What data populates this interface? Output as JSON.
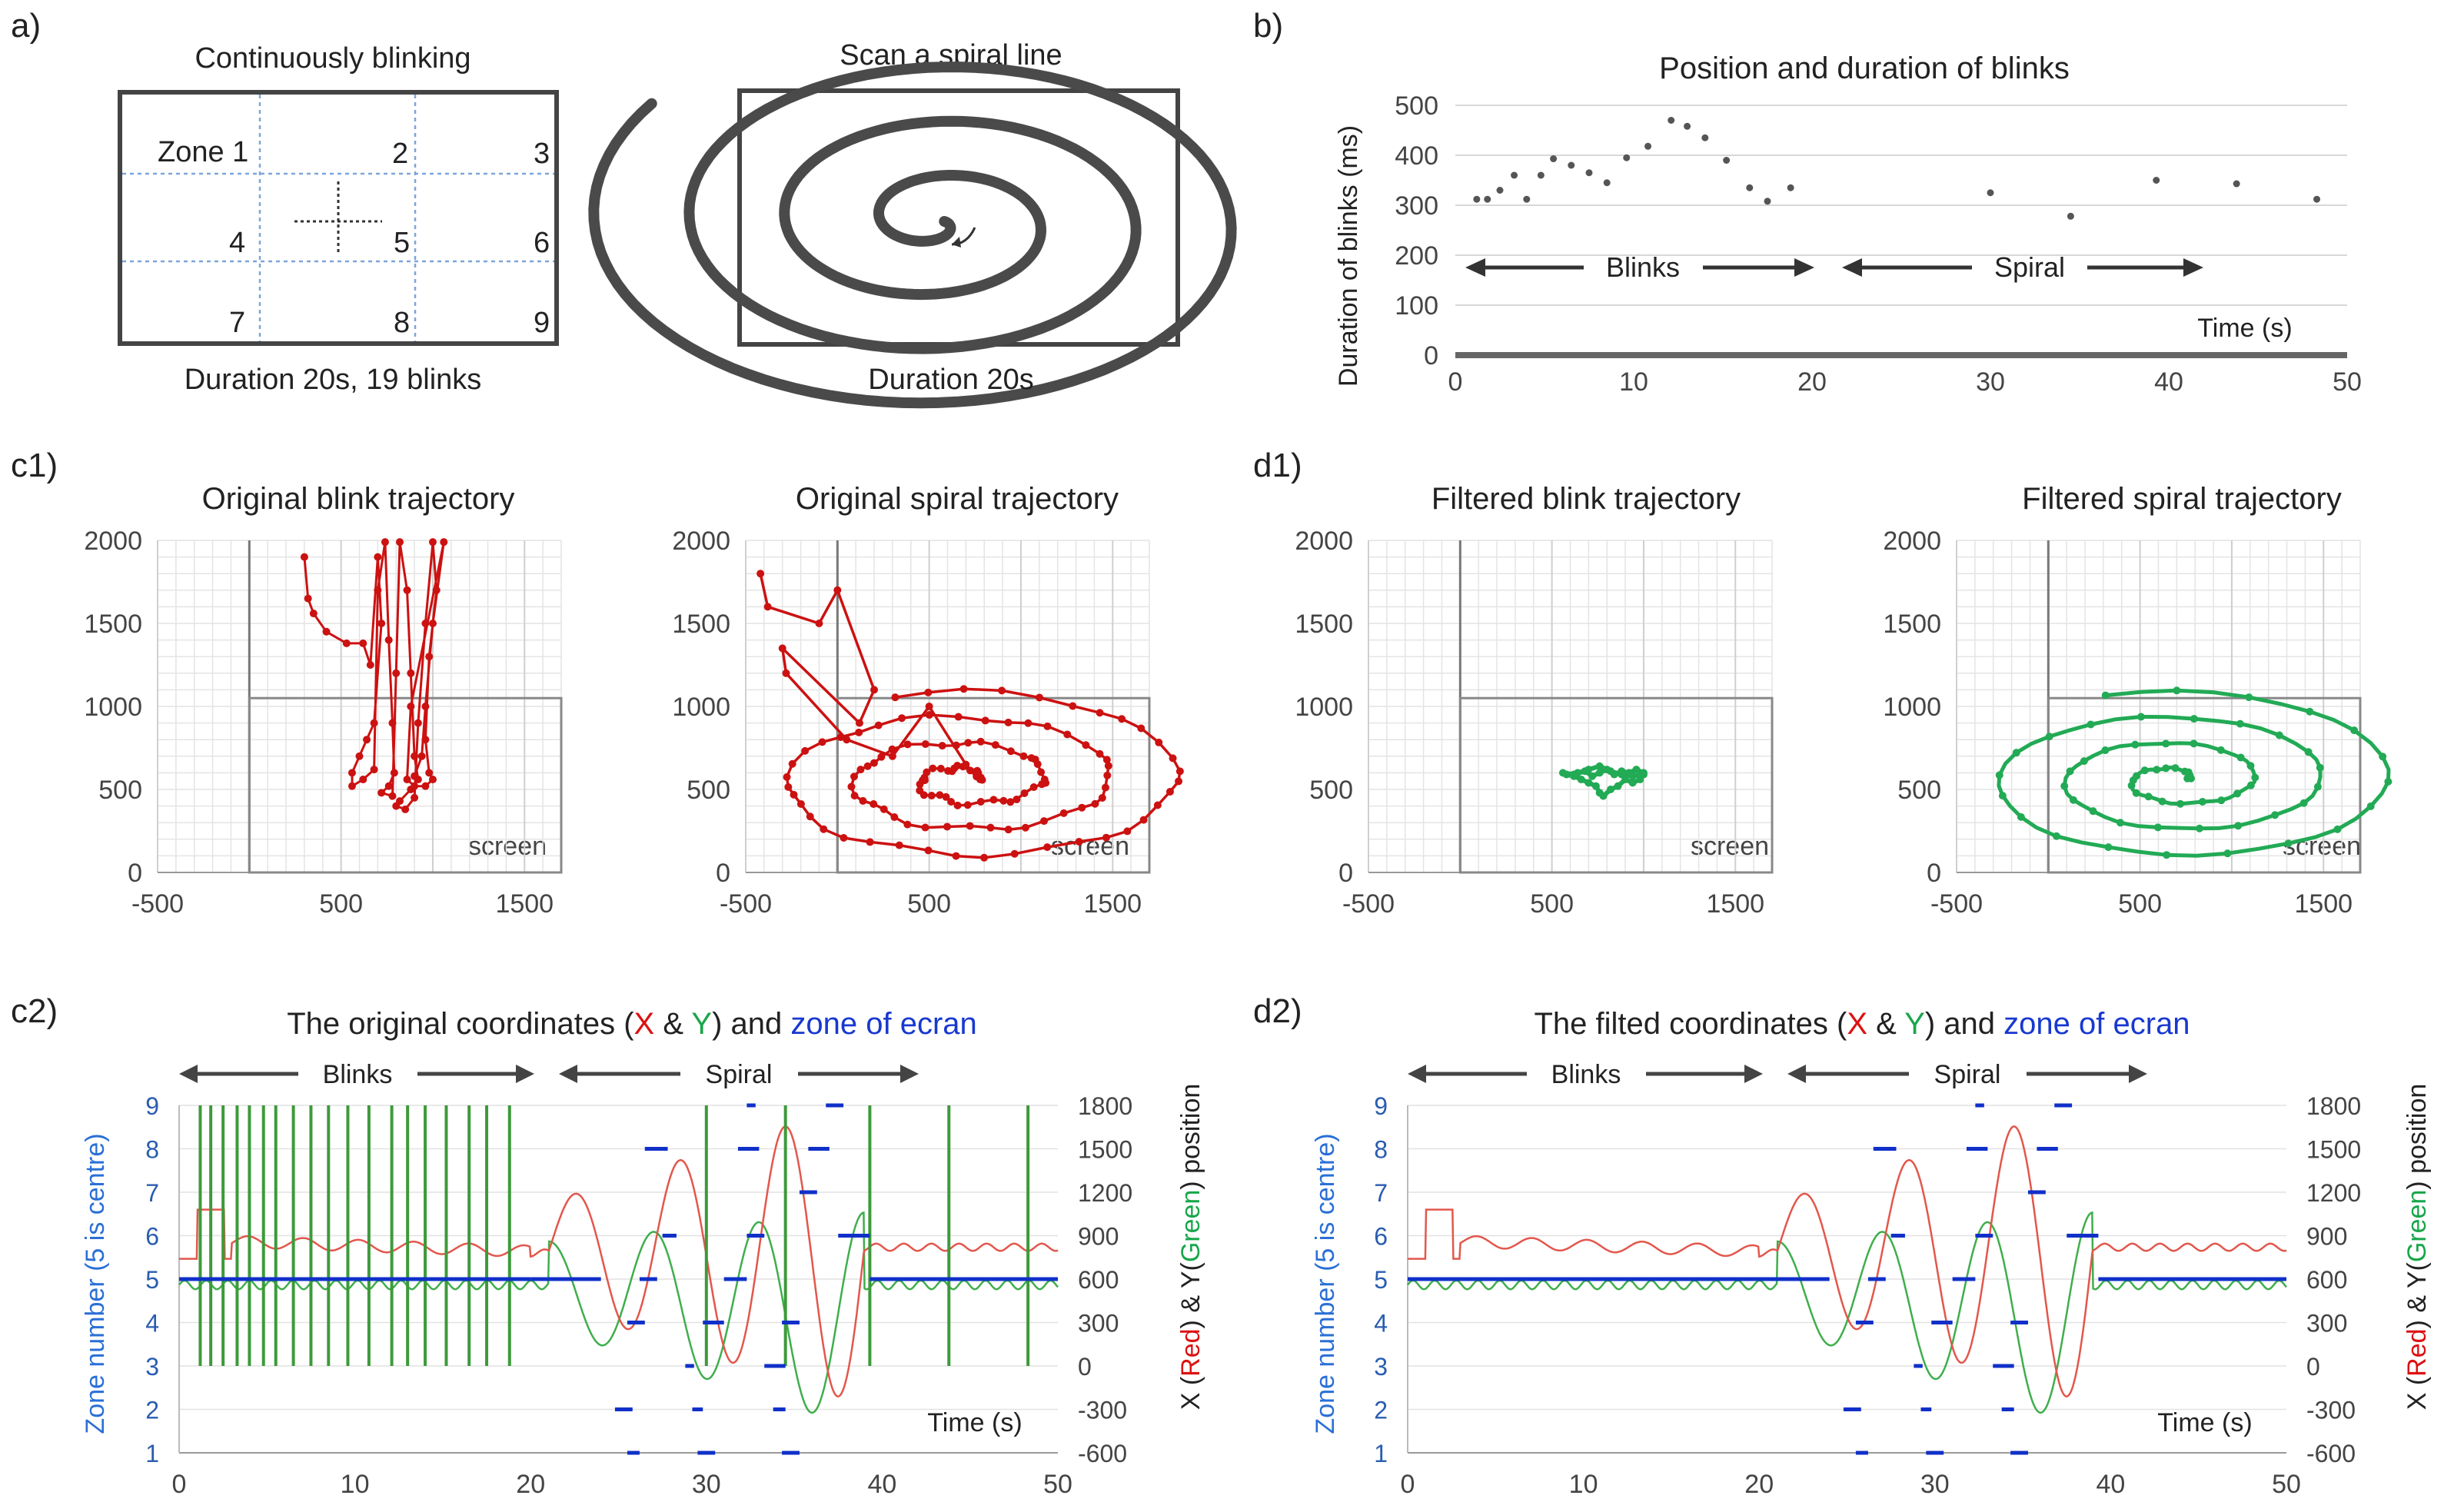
{
  "panels": {
    "a": "a)",
    "b": "b)",
    "c1": "c1)",
    "d1": "d1)",
    "c2": "c2)",
    "d2": "d2)"
  },
  "panel_a": {
    "left_title": "Continuously blinking",
    "left_caption": "Duration 20s, 19 blinks",
    "zones": [
      "Zone 1",
      "2",
      "3",
      "4",
      "5",
      "6",
      "7",
      "8",
      "9"
    ],
    "right_title": "Scan a spiral line",
    "right_caption": "Duration 20s"
  },
  "colors": {
    "red": "#cc1111",
    "green": "#22aa55",
    "blue": "#1030c8",
    "zone_axis": "#2a6fd6",
    "gray_line": "#555555"
  },
  "chart_data": [
    {
      "id": "b",
      "type": "scatter",
      "title": "Position and duration of  blinks",
      "xlabel": "Time (s)",
      "ylabel": "Duration of blinks (ms)",
      "xlim": [
        0,
        50
      ],
      "ylim": [
        0,
        500
      ],
      "xticks": [
        0,
        10,
        20,
        30,
        40,
        50
      ],
      "yticks": [
        0,
        100,
        200,
        300,
        400,
        500
      ],
      "annotations": [
        "Blinks",
        "Spiral"
      ],
      "points": [
        [
          1.2,
          312
        ],
        [
          1.8,
          312
        ],
        [
          2.5,
          330
        ],
        [
          3.3,
          360
        ],
        [
          4.0,
          312
        ],
        [
          4.8,
          360
        ],
        [
          5.5,
          393
        ],
        [
          6.5,
          380
        ],
        [
          7.5,
          365
        ],
        [
          8.5,
          345
        ],
        [
          9.6,
          395
        ],
        [
          10.8,
          418
        ],
        [
          12.1,
          470
        ],
        [
          13.0,
          458
        ],
        [
          14.0,
          435
        ],
        [
          15.2,
          390
        ],
        [
          16.5,
          335
        ],
        [
          17.5,
          308
        ],
        [
          18.8,
          335
        ],
        [
          30.0,
          325
        ],
        [
          34.5,
          278
        ],
        [
          39.3,
          350
        ],
        [
          43.8,
          343
        ],
        [
          48.3,
          312
        ]
      ]
    },
    {
      "id": "c1-left",
      "type": "line",
      "title": "Original blink trajectory",
      "xlim": [
        -500,
        1700
      ],
      "ylim": [
        0,
        2000
      ],
      "xticks": [
        -500,
        500,
        1500
      ],
      "yticks": [
        0,
        500,
        1000,
        1500,
        2000
      ],
      "screen_label": "screen",
      "screen_box": {
        "x0": 0,
        "x1": 1700,
        "y0": 0,
        "y1": 1050
      },
      "color": "#cc1111",
      "points": [
        [
          300,
          1900
        ],
        [
          320,
          1650
        ],
        [
          350,
          1560
        ],
        [
          420,
          1450
        ],
        [
          530,
          1380
        ],
        [
          620,
          1380
        ],
        [
          660,
          1250
        ],
        [
          700,
          1900
        ],
        [
          720,
          1500
        ],
        [
          680,
          900
        ],
        [
          640,
          800
        ],
        [
          600,
          700
        ],
        [
          560,
          600
        ],
        [
          560,
          520
        ],
        [
          620,
          560
        ],
        [
          680,
          620
        ],
        [
          700,
          1700
        ],
        [
          740,
          1990
        ],
        [
          760,
          1400
        ],
        [
          780,
          900
        ],
        [
          790,
          600
        ],
        [
          760,
          520
        ],
        [
          720,
          480
        ],
        [
          780,
          460
        ],
        [
          800,
          1200
        ],
        [
          820,
          1990
        ],
        [
          860,
          1700
        ],
        [
          880,
          1200
        ],
        [
          900,
          700
        ],
        [
          920,
          560
        ],
        [
          880,
          500
        ],
        [
          820,
          430
        ],
        [
          800,
          400
        ],
        [
          850,
          380
        ],
        [
          900,
          450
        ],
        [
          920,
          900
        ],
        [
          960,
          1500
        ],
        [
          1000,
          1990
        ],
        [
          1020,
          1700
        ],
        [
          980,
          1300
        ],
        [
          960,
          800
        ],
        [
          980,
          600
        ],
        [
          1000,
          560
        ],
        [
          960,
          520
        ],
        [
          900,
          520
        ],
        [
          860,
          560
        ],
        [
          880,
          1000
        ],
        [
          1060,
          1990
        ],
        [
          1000,
          1500
        ],
        [
          960,
          1000
        ],
        [
          940,
          700
        ],
        [
          900,
          580
        ]
      ]
    },
    {
      "id": "c1-right",
      "type": "line",
      "title": "Original spiral trajectory",
      "xlim": [
        -500,
        1700
      ],
      "ylim": [
        0,
        2000
      ],
      "xticks": [
        -500,
        500,
        1500
      ],
      "yticks": [
        0,
        500,
        1000,
        1500,
        2000
      ],
      "screen_label": "screen",
      "screen_box": {
        "x0": 0,
        "x1": 1700,
        "y0": 0,
        "y1": 1050
      },
      "color": "#cc1111"
    },
    {
      "id": "d1-left",
      "type": "line",
      "title": "Filtered blink trajectory",
      "xlim": [
        -500,
        1700
      ],
      "ylim": [
        0,
        2000
      ],
      "xticks": [
        -500,
        500,
        1500
      ],
      "yticks": [
        0,
        500,
        1000,
        1500,
        2000
      ],
      "screen_label": "screen",
      "screen_box": {
        "x0": 0,
        "x1": 1700,
        "y0": 0,
        "y1": 1050
      },
      "color": "#22aa55",
      "points": [
        [
          560,
          600
        ],
        [
          620,
          590
        ],
        [
          680,
          610
        ],
        [
          720,
          580
        ],
        [
          760,
          600
        ],
        [
          800,
          620
        ],
        [
          840,
          590
        ],
        [
          880,
          610
        ],
        [
          920,
          600
        ],
        [
          960,
          620
        ],
        [
          1000,
          600
        ],
        [
          980,
          560
        ],
        [
          940,
          540
        ],
        [
          900,
          560
        ],
        [
          860,
          520
        ],
        [
          820,
          500
        ],
        [
          780,
          460
        ],
        [
          760,
          480
        ],
        [
          740,
          520
        ],
        [
          700,
          540
        ],
        [
          660,
          560
        ],
        [
          620,
          580
        ],
        [
          580,
          590
        ],
        [
          640,
          600
        ],
        [
          700,
          620
        ],
        [
          760,
          640
        ],
        [
          820,
          610
        ],
        [
          880,
          590
        ],
        [
          940,
          580
        ],
        [
          1000,
          590
        ]
      ]
    },
    {
      "id": "d1-right",
      "type": "line",
      "title": "Filtered spiral trajectory",
      "xlim": [
        -500,
        1700
      ],
      "ylim": [
        0,
        2000
      ],
      "xticks": [
        -500,
        500,
        1500
      ],
      "yticks": [
        0,
        500,
        1000,
        1500,
        2000
      ],
      "screen_label": "screen",
      "screen_box": {
        "x0": 0,
        "x1": 1700,
        "y0": 0,
        "y1": 1050
      },
      "color": "#22aa55"
    },
    {
      "id": "c2",
      "type": "line",
      "title_parts": [
        "The original coordinates (",
        "X",
        " & ",
        "Y",
        ") and ",
        "zone of ecran"
      ],
      "xlabel": "Time (s)",
      "ylabel_left": "Zone number (5 is centre)",
      "ylabel_right_parts": [
        "X (",
        "Red",
        ") & Y(",
        "Green",
        ") position"
      ],
      "xlim": [
        0,
        50
      ],
      "xticks": [
        0,
        10,
        20,
        30,
        40,
        50
      ],
      "ylim_left": [
        1,
        9
      ],
      "yticks_left": [
        1,
        2,
        3,
        4,
        5,
        6,
        7,
        8,
        9
      ],
      "ylim_right": [
        -600,
        1800
      ],
      "yticks_right": [
        -600,
        -300,
        0,
        300,
        600,
        900,
        1200,
        1500,
        1800
      ],
      "annotations": [
        "Blinks",
        "Spiral"
      ],
      "blink_times": [
        1.2,
        1.8,
        2.5,
        3.3,
        4.0,
        4.8,
        5.5,
        6.5,
        7.5,
        8.5,
        9.6,
        10.8,
        12.1,
        13.0,
        14.0,
        15.2,
        16.5,
        17.5,
        18.8,
        30.0,
        34.5,
        39.3,
        43.8,
        48.3
      ],
      "zone_segments": [
        [
          0,
          20,
          5
        ],
        [
          20,
          24,
          5
        ],
        [
          24.8,
          25.8,
          2
        ],
        [
          25.5,
          26.2,
          1
        ],
        [
          25.5,
          26.5,
          4
        ],
        [
          26.2,
          27.2,
          5
        ],
        [
          26.5,
          27.8,
          8
        ],
        [
          27.5,
          28.3,
          6
        ],
        [
          28.8,
          29.3,
          3
        ],
        [
          29.2,
          29.8,
          2
        ],
        [
          29.5,
          30.5,
          1
        ],
        [
          29.8,
          31.0,
          4
        ],
        [
          31.0,
          32.3,
          5
        ],
        [
          31.8,
          33.0,
          8
        ],
        [
          32.3,
          32.8,
          9
        ],
        [
          32.3,
          33.3,
          6
        ],
        [
          33.3,
          34.5,
          3
        ],
        [
          33.8,
          34.5,
          2
        ],
        [
          34.3,
          35.3,
          1
        ],
        [
          34.3,
          35.3,
          4
        ],
        [
          35.3,
          36.3,
          7
        ],
        [
          35.8,
          37.0,
          8
        ],
        [
          36.8,
          37.8,
          9
        ],
        [
          37.5,
          39.3,
          6
        ],
        [
          39.3,
          50,
          5
        ]
      ]
    },
    {
      "id": "d2",
      "type": "line",
      "title_parts": [
        "The filted coordinates (",
        "X",
        " & ",
        "Y",
        ") and ",
        "zone of ecran"
      ],
      "xlabel": "Time (s)",
      "ylabel_left": "Zone number (5 is centre)",
      "ylabel_right_parts": [
        "X (",
        "Red",
        ") & Y(",
        "Green",
        ") position"
      ],
      "xlim": [
        0,
        50
      ],
      "xticks": [
        0,
        10,
        20,
        30,
        40,
        50
      ],
      "ylim_left": [
        1,
        9
      ],
      "yticks_left": [
        1,
        2,
        3,
        4,
        5,
        6,
        7,
        8,
        9
      ],
      "ylim_right": [
        -600,
        1800
      ],
      "yticks_right": [
        -600,
        -300,
        0,
        300,
        600,
        900,
        1200,
        1500,
        1800
      ],
      "annotations": [
        "Blinks",
        "Spiral"
      ],
      "zone_segments": [
        [
          0,
          24,
          5
        ],
        [
          24.8,
          25.8,
          2
        ],
        [
          25.5,
          26.2,
          1
        ],
        [
          25.5,
          26.5,
          4
        ],
        [
          26.2,
          27.2,
          5
        ],
        [
          26.5,
          27.8,
          8
        ],
        [
          27.5,
          28.3,
          6
        ],
        [
          28.8,
          29.3,
          3
        ],
        [
          29.2,
          29.8,
          2
        ],
        [
          29.5,
          30.5,
          1
        ],
        [
          29.8,
          31.0,
          4
        ],
        [
          31.0,
          32.3,
          5
        ],
        [
          31.8,
          33.0,
          8
        ],
        [
          32.3,
          32.8,
          9
        ],
        [
          32.3,
          33.3,
          6
        ],
        [
          33.3,
          34.5,
          3
        ],
        [
          33.8,
          34.5,
          2
        ],
        [
          34.3,
          35.3,
          1
        ],
        [
          34.3,
          35.3,
          4
        ],
        [
          35.3,
          36.3,
          7
        ],
        [
          35.8,
          37.0,
          8
        ],
        [
          36.8,
          37.8,
          9
        ],
        [
          37.5,
          39.3,
          6
        ],
        [
          39.3,
          50,
          5
        ]
      ]
    }
  ]
}
